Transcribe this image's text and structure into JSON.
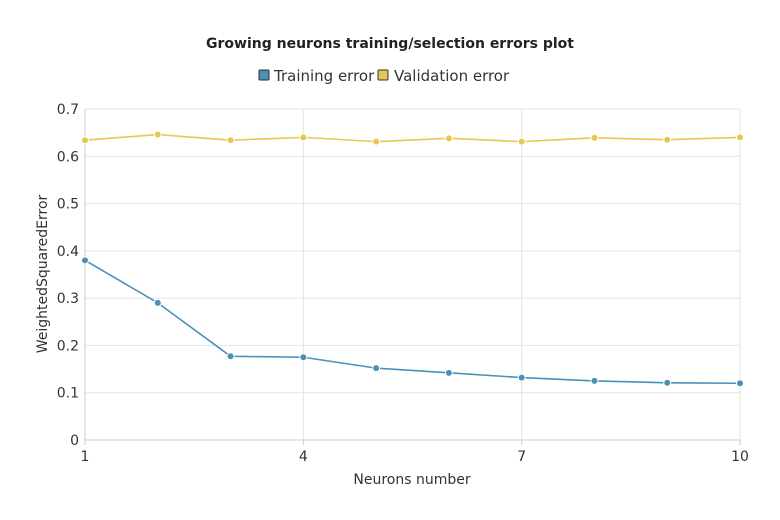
{
  "chart_data": {
    "type": "line",
    "title": "Growing neurons training/selection errors plot",
    "xlabel": "Neurons number",
    "ylabel": "WeightedSquaredError",
    "xlim": [
      1,
      10
    ],
    "ylim": [
      0,
      0.7
    ],
    "xticks": [
      "1",
      "4",
      "7",
      "10"
    ],
    "yticks": [
      "0",
      "0.1",
      "0.2",
      "0.3",
      "0.4",
      "0.5",
      "0.6",
      "0.7"
    ],
    "x": [
      1,
      2,
      3,
      4,
      5,
      6,
      7,
      8,
      9,
      10
    ],
    "grid": true,
    "legend_position": "top-center",
    "series": [
      {
        "name": "Training error",
        "color": "#4a90b8",
        "values": [
          0.38,
          0.29,
          0.177,
          0.175,
          0.152,
          0.142,
          0.132,
          0.125,
          0.121,
          0.12
        ]
      },
      {
        "name": "Validation error",
        "color": "#e6c84f",
        "values": [
          0.634,
          0.646,
          0.634,
          0.64,
          0.631,
          0.638,
          0.631,
          0.639,
          0.635,
          0.64
        ]
      }
    ]
  }
}
